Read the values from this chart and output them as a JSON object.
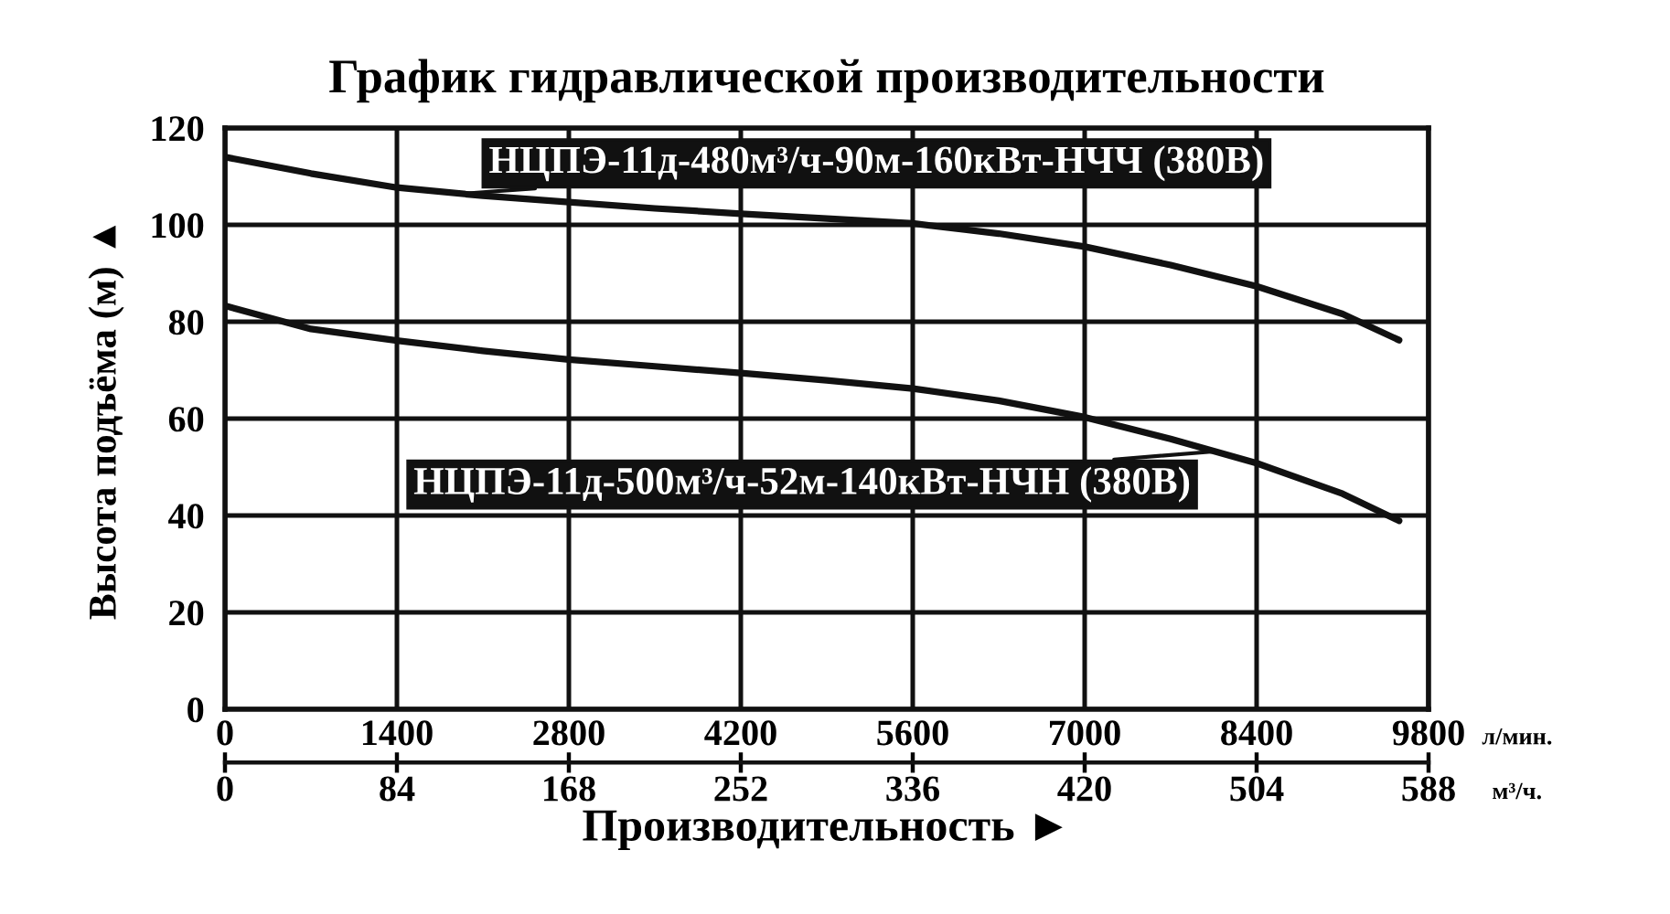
{
  "chart_data": {
    "type": "line",
    "title": "График гидравлической производительности",
    "xlabel": "Производительность ►",
    "ylabel": "Высота подъёма (м) ▲",
    "xlim": [
      0,
      9800
    ],
    "xticks": [
      0,
      1400,
      2800,
      4200,
      5600,
      7000,
      8400,
      9800
    ],
    "x2lim": [
      0,
      588
    ],
    "x2ticks": [
      0,
      84,
      168,
      252,
      336,
      420,
      504,
      588
    ],
    "ylim": [
      0,
      120
    ],
    "yticks": [
      0,
      20,
      40,
      60,
      80,
      100,
      120
    ],
    "grid": true,
    "series": [
      {
        "color": "#111111",
        "x": [
          0,
          700,
          1400,
          2100,
          2800,
          3500,
          4200,
          4900,
          5600,
          6300,
          7000,
          7700,
          8400,
          9100,
          9560
        ],
        "values": [
          114.0,
          110.6,
          107.7,
          106.0,
          104.7,
          103.4,
          102.3,
          101.3,
          100.3,
          98.2,
          95.5,
          91.7,
          87.3,
          81.6,
          76.2
        ]
      },
      {
        "color": "#111111",
        "x": [
          0,
          700,
          1400,
          2100,
          2800,
          3500,
          4200,
          4900,
          5600,
          6300,
          7000,
          7700,
          8400,
          9100,
          9560
        ],
        "values": [
          83.3,
          78.5,
          76.1,
          74.0,
          72.2,
          70.8,
          69.4,
          67.9,
          66.2,
          63.7,
          60.3,
          55.8,
          50.8,
          44.5,
          38.9
        ]
      }
    ],
    "annotations": [
      "л/мин.",
      "м³/ч.",
      {
        "text": "НЦПЭ-11д-480м³/ч-90м-160кВт-НЧЧ (380В)",
        "x": 1920,
        "y": 106.4
      },
      {
        "text": "НЦПЭ-11д-500м³/ч-52м-140кВт-НЧН (380В)",
        "x": 8050,
        "y": 53.2
      }
    ]
  }
}
